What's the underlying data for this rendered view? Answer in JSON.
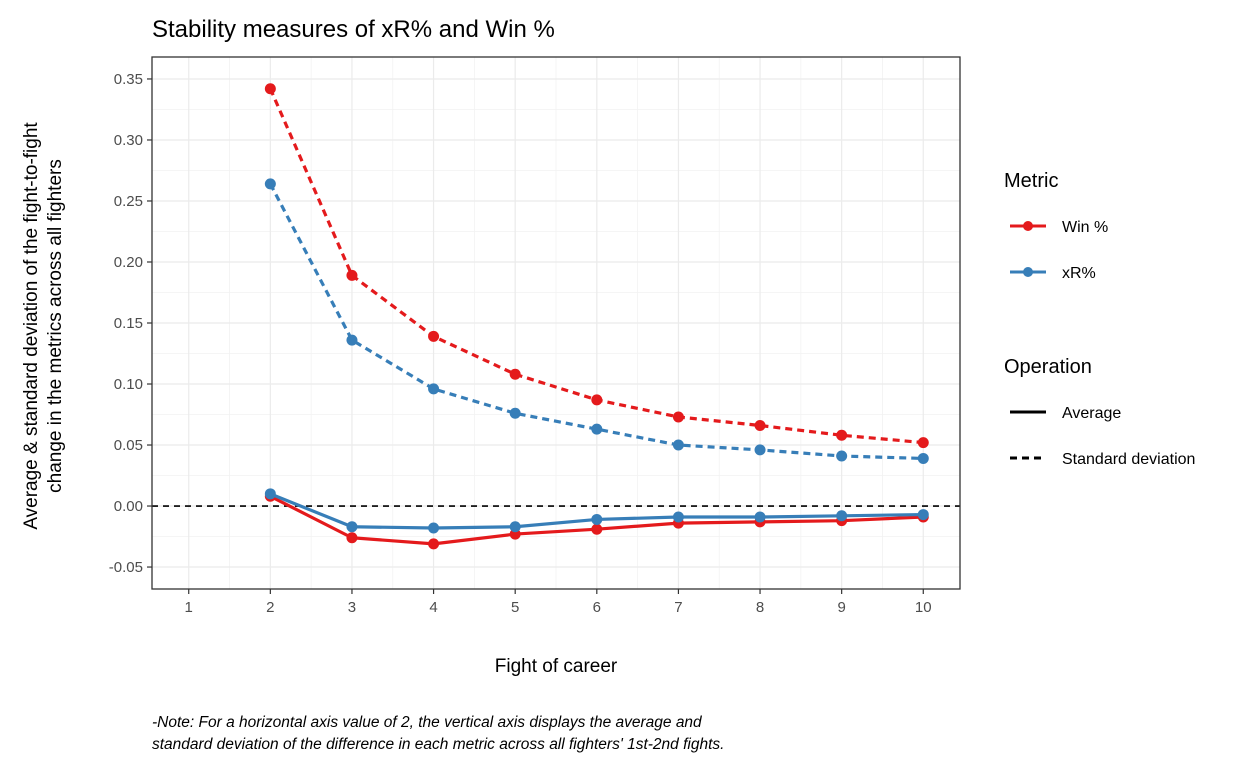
{
  "chart_data": {
    "type": "line",
    "title": "Stability measures of xR% and Win %",
    "xlabel": "Fight of career",
    "ylabel_lines": [
      "Average & standard deviation of the fight-to-fight",
      "change in the metrics across all fighters"
    ],
    "caption_lines": [
      "-Note: For a horizontal axis value of 2, the vertical axis displays the average and",
      "standard deviation of the difference in each metric across all fighters' 1st-2nd fights."
    ],
    "x_ticks": [
      1,
      2,
      3,
      4,
      5,
      6,
      7,
      8,
      9,
      10
    ],
    "y_ticks": [
      -0.05,
      0.0,
      0.05,
      0.1,
      0.15,
      0.2,
      0.25,
      0.3,
      0.35
    ],
    "y_tick_labels": [
      "-0.05",
      "0.00",
      "0.05",
      "0.10",
      "0.15",
      "0.20",
      "0.25",
      "0.30",
      "0.35"
    ],
    "xlim": [
      0.55,
      10.45
    ],
    "ylim": [
      -0.068,
      0.368
    ],
    "grid": true,
    "reference_line": {
      "y": 0,
      "style": "dashed"
    },
    "x": [
      2,
      3,
      4,
      5,
      6,
      7,
      8,
      9,
      10
    ],
    "series": [
      {
        "metric": "Win %",
        "operation": "Standard deviation",
        "color": "#E41A1C",
        "values": [
          0.342,
          0.189,
          0.139,
          0.108,
          0.087,
          0.073,
          0.066,
          0.058,
          0.052
        ]
      },
      {
        "metric": "xR%",
        "operation": "Standard deviation",
        "color": "#377EB8",
        "values": [
          0.264,
          0.136,
          0.096,
          0.076,
          0.063,
          0.05,
          0.046,
          0.041,
          0.039
        ]
      },
      {
        "metric": "Win %",
        "operation": "Average",
        "color": "#E41A1C",
        "values": [
          0.008,
          -0.026,
          -0.031,
          -0.023,
          -0.019,
          -0.014,
          -0.013,
          -0.012,
          -0.009
        ]
      },
      {
        "metric": "xR%",
        "operation": "Average",
        "color": "#377EB8",
        "values": [
          0.01,
          -0.017,
          -0.018,
          -0.017,
          -0.011,
          -0.009,
          -0.009,
          -0.008,
          -0.007
        ]
      }
    ],
    "legend": {
      "placement": "right",
      "metric_title": "Metric",
      "metric_items": [
        {
          "label": "Win %",
          "color": "#E41A1C"
        },
        {
          "label": "xR%",
          "color": "#377EB8"
        }
      ],
      "operation_title": "Operation",
      "operation_items": [
        {
          "label": "Average",
          "style": "solid"
        },
        {
          "label": "Standard deviation",
          "style": "dashed"
        }
      ]
    }
  }
}
